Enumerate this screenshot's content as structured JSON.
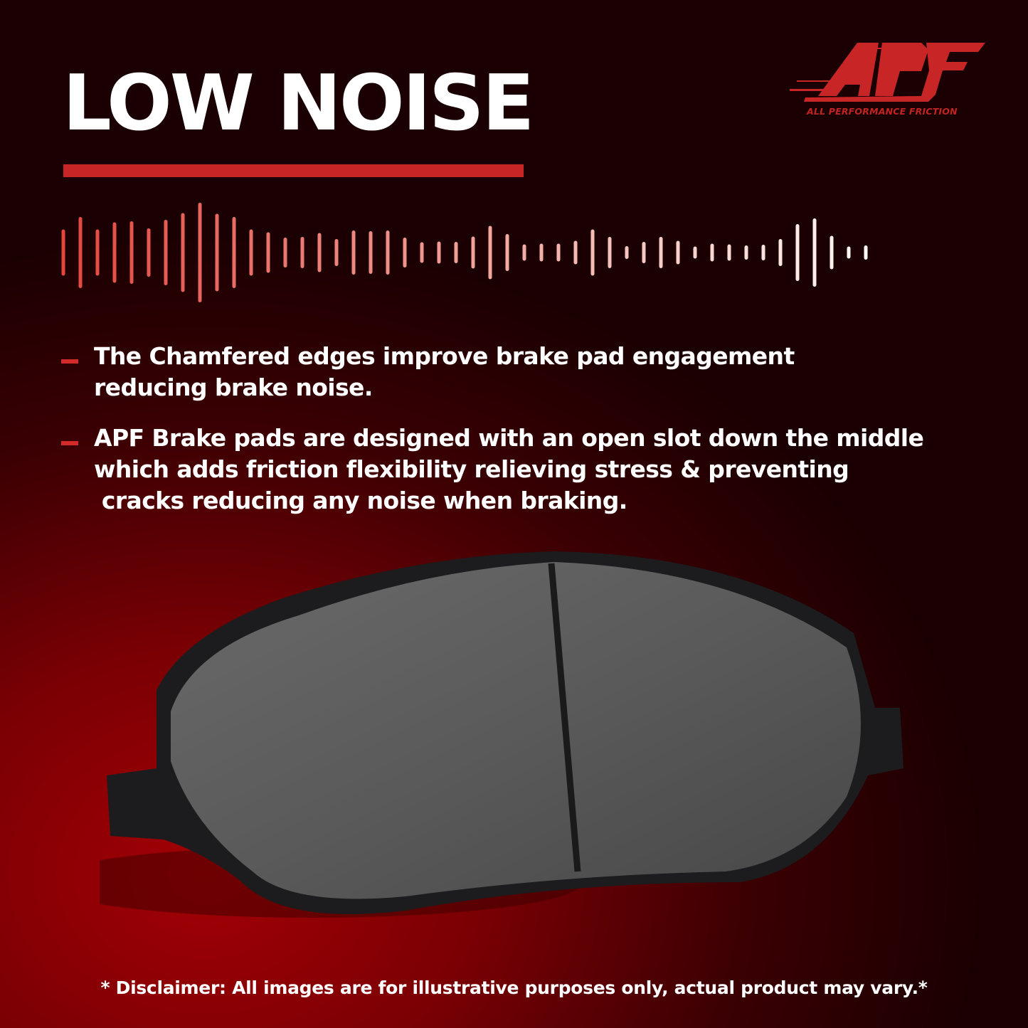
{
  "heading": {
    "title": "LOW NOISE"
  },
  "brand": {
    "logo_text": "APF",
    "tagline": "ALL PERFORMANCE FRICTION",
    "accent_color": "#c82626"
  },
  "bullets": [
    {
      "text": "The Chamfered edges improve brake pad engagement\nreducing brake noise."
    },
    {
      "text": "APF Brake pads are designed with an open slot down the middle\nwhich adds friction flexibility relieving stress & preventing\n cracks reducing any noise when braking."
    }
  ],
  "disclaimer": "* Disclaimer: All images are for illustrative purposes only, actual product may vary.*"
}
